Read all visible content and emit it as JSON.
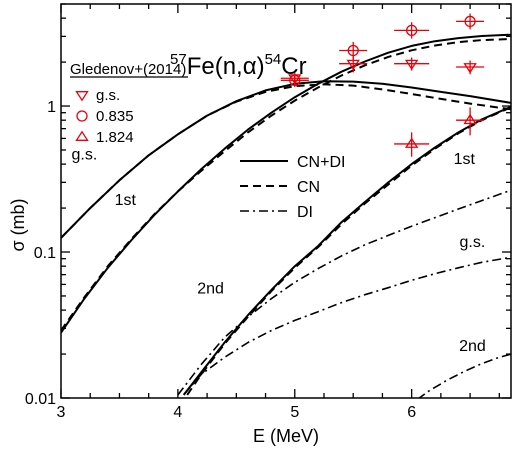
{
  "chart_data": {
    "type": "line",
    "title": {
      "sup1": "57",
      "part1": "Fe(n,",
      "alpha": "α",
      "part2": ")",
      "sup2": "54",
      "part3": "Cr"
    },
    "xlabel": "E (MeV)",
    "ylabel": "σ (mb)",
    "xlim": [
      3,
      6.85
    ],
    "ylim": [
      0.01,
      5
    ],
    "yscale": "log",
    "x_ticks": [
      3,
      4,
      5,
      6
    ],
    "x_tick_labels": [
      "3",
      "4",
      "5",
      "6"
    ],
    "y_ticks": [
      0.01,
      0.1,
      1
    ],
    "y_tick_labels": [
      "0.01",
      "0.1",
      "1"
    ],
    "grid": false,
    "colors": {
      "theory": "#000000",
      "experiment": "#e8000b"
    },
    "legend_models": {
      "placement": "center",
      "entries": [
        {
          "label": "CN+DI",
          "style": "solid"
        },
        {
          "label": "CN",
          "style": "dashed"
        },
        {
          "label": "DI",
          "style": "dashdot"
        }
      ]
    },
    "legend_experiment": {
      "placement": "top-left",
      "title": "Gledenov+(2014)",
      "entries": [
        {
          "label": "g.s.",
          "marker": "triangle-down"
        },
        {
          "label": "0.835",
          "marker": "circle"
        },
        {
          "label": "1.824",
          "marker": "triangle-up"
        }
      ]
    },
    "annotations": [
      {
        "text": "g.s.",
        "x": 3.2,
        "y": 0.43
      },
      {
        "text": "1st",
        "x": 3.55,
        "y": 0.21
      },
      {
        "text": "2nd",
        "x": 4.28,
        "y": 0.052
      },
      {
        "text": "1st",
        "x": 6.45,
        "y": 0.4
      },
      {
        "text": "g.s.",
        "x": 6.52,
        "y": 0.108
      },
      {
        "text": "2nd",
        "x": 6.52,
        "y": 0.021
      }
    ],
    "series": [
      {
        "style": "solid",
        "x": [
          3.0,
          3.25,
          3.5,
          3.75,
          4.0,
          4.25,
          4.5,
          4.75,
          5.0,
          5.25,
          5.5,
          5.75,
          6.0,
          6.25,
          6.5,
          6.85
        ],
        "y": [
          0.125,
          0.2,
          0.31,
          0.46,
          0.64,
          0.86,
          1.08,
          1.28,
          1.42,
          1.48,
          1.47,
          1.42,
          1.34,
          1.25,
          1.17,
          1.05
        ]
      },
      {
        "style": "dashed",
        "x": [
          3.0,
          3.25,
          3.5,
          3.75,
          4.0,
          4.25,
          4.5,
          4.75,
          5.0,
          5.25,
          5.5,
          5.75,
          6.0,
          6.25,
          6.5,
          6.85
        ],
        "y": [
          0.125,
          0.2,
          0.31,
          0.46,
          0.64,
          0.86,
          1.07,
          1.25,
          1.37,
          1.41,
          1.38,
          1.3,
          1.21,
          1.12,
          1.04,
          0.95
        ]
      },
      {
        "style": "solid",
        "x": [
          3.0,
          3.2,
          3.4,
          3.6,
          3.8,
          4.0,
          4.2,
          4.4,
          4.6,
          4.8,
          5.0,
          5.2,
          5.4,
          5.6,
          5.8,
          6.0,
          6.2,
          6.4,
          6.6,
          6.85
        ],
        "y": [
          0.028,
          0.048,
          0.078,
          0.12,
          0.18,
          0.26,
          0.37,
          0.51,
          0.69,
          0.9,
          1.15,
          1.42,
          1.72,
          2.02,
          2.32,
          2.58,
          2.78,
          2.92,
          3.02,
          3.08
        ]
      },
      {
        "style": "dashed",
        "x": [
          3.0,
          3.2,
          3.4,
          3.6,
          3.8,
          4.0,
          4.2,
          4.4,
          4.6,
          4.8,
          5.0,
          5.2,
          5.4,
          5.6,
          5.8,
          6.0,
          6.2,
          6.4,
          6.6,
          6.85
        ],
        "y": [
          0.029,
          0.049,
          0.08,
          0.122,
          0.182,
          0.26,
          0.36,
          0.49,
          0.66,
          0.86,
          1.09,
          1.34,
          1.62,
          1.9,
          2.17,
          2.41,
          2.6,
          2.74,
          2.83,
          2.88
        ]
      },
      {
        "style": "solid",
        "x": [
          4.05,
          4.2,
          4.4,
          4.6,
          4.8,
          5.0,
          5.2,
          5.4,
          5.6,
          5.8,
          6.0,
          6.2,
          6.4,
          6.6,
          6.85
        ],
        "y": [
          0.0105,
          0.015,
          0.024,
          0.037,
          0.055,
          0.08,
          0.11,
          0.16,
          0.22,
          0.3,
          0.4,
          0.52,
          0.66,
          0.81,
          0.99
        ]
      },
      {
        "style": "dashed",
        "x": [
          4.08,
          4.2,
          4.4,
          4.6,
          4.8,
          5.0,
          5.2,
          5.4,
          5.6,
          5.8,
          6.0,
          6.2,
          6.4,
          6.6,
          6.85
        ],
        "y": [
          0.0105,
          0.0145,
          0.0235,
          0.036,
          0.054,
          0.078,
          0.108,
          0.155,
          0.215,
          0.29,
          0.39,
          0.51,
          0.65,
          0.8,
          0.98
        ]
      },
      {
        "style": "dashdot",
        "x": [
          4.0,
          4.2,
          4.4,
          4.6,
          4.8,
          5.0,
          5.2,
          5.4,
          5.6,
          5.8,
          6.0,
          6.2,
          6.4,
          6.6,
          6.85
        ],
        "y": [
          0.0105,
          0.017,
          0.026,
          0.036,
          0.048,
          0.062,
          0.077,
          0.094,
          0.112,
          0.13,
          0.15,
          0.172,
          0.197,
          0.225,
          0.265
        ]
      },
      {
        "style": "dashdot",
        "x": [
          4.05,
          4.2,
          4.4,
          4.6,
          4.8,
          5.0,
          5.2,
          5.4,
          5.6,
          5.8,
          6.0,
          6.2,
          6.4,
          6.6,
          6.85
        ],
        "y": [
          0.0105,
          0.0145,
          0.019,
          0.024,
          0.029,
          0.034,
          0.039,
          0.045,
          0.051,
          0.057,
          0.064,
          0.071,
          0.078,
          0.085,
          0.092
        ]
      },
      {
        "style": "dashdot",
        "x": [
          6.05,
          6.15,
          6.3,
          6.45,
          6.6,
          6.75,
          6.85
        ],
        "y": [
          0.0098,
          0.0112,
          0.0132,
          0.0152,
          0.0172,
          0.019,
          0.02
        ]
      }
    ],
    "experiment": [
      {
        "label": "g.s.",
        "marker": "triangle-down",
        "points": [
          {
            "x": 5.0,
            "y": 1.55,
            "xerr": 0.12,
            "ylow": 1.4,
            "yhigh": 1.7
          },
          {
            "x": 5.5,
            "y": 1.95,
            "xerr": 0.12,
            "ylow": 1.7,
            "yhigh": 2.2
          },
          {
            "x": 6.0,
            "y": 1.95,
            "xerr": 0.15,
            "ylow": 1.75,
            "yhigh": 2.15
          },
          {
            "x": 6.5,
            "y": 1.85,
            "xerr": 0.12,
            "ylow": 1.65,
            "yhigh": 2.05
          }
        ]
      },
      {
        "label": "0.835",
        "marker": "circle",
        "points": [
          {
            "x": 5.0,
            "y": 1.5,
            "xerr": 0.12,
            "ylow": 1.35,
            "yhigh": 1.65
          },
          {
            "x": 5.5,
            "y": 2.4,
            "xerr": 0.12,
            "ylow": 2.1,
            "yhigh": 2.75
          },
          {
            "x": 6.0,
            "y": 3.3,
            "xerr": 0.15,
            "ylow": 2.9,
            "yhigh": 3.75
          },
          {
            "x": 6.5,
            "y": 3.8,
            "xerr": 0.12,
            "ylow": 3.35,
            "yhigh": 4.3
          }
        ]
      },
      {
        "label": "1.824",
        "marker": "triangle-up",
        "points": [
          {
            "x": 6.0,
            "y": 0.55,
            "xerr": 0.15,
            "ylow": 0.45,
            "yhigh": 0.66
          },
          {
            "x": 6.5,
            "y": 0.8,
            "xerr": 0.12,
            "ylow": 0.63,
            "yhigh": 0.98
          }
        ]
      }
    ]
  }
}
